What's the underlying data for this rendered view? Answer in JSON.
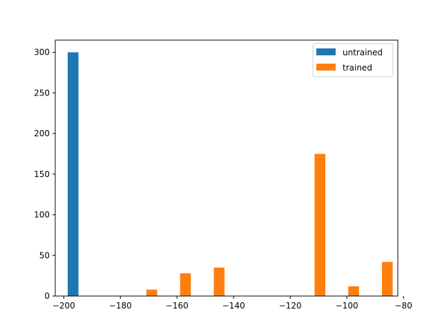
{
  "chart_data": {
    "type": "bar",
    "title": "",
    "xlabel": "",
    "ylabel": "",
    "xlim": [
      -203,
      -82
    ],
    "ylim": [
      0,
      315
    ],
    "bar_width": 3.8,
    "x_ticks": [
      -200,
      -180,
      -160,
      -140,
      -120,
      -100,
      -80
    ],
    "x_tick_labels": [
      "−200",
      "−180",
      "−160",
      "−140",
      "−120",
      "−100",
      "−80"
    ],
    "y_ticks": [
      0,
      50,
      100,
      150,
      200,
      250,
      300
    ],
    "y_tick_labels": [
      "0",
      "50",
      "100",
      "150",
      "200",
      "250",
      "300"
    ],
    "grid": false,
    "legend_position": "top-right",
    "series": [
      {
        "name": "untrained",
        "color": "#1f77b4",
        "points": [
          {
            "x": -196.7,
            "y": 300
          }
        ]
      },
      {
        "name": "trained",
        "color": "#ff7f0e",
        "points": [
          {
            "x": -168.9,
            "y": 8
          },
          {
            "x": -157.0,
            "y": 28
          },
          {
            "x": -145.1,
            "y": 35
          },
          {
            "x": -109.5,
            "y": 175
          },
          {
            "x": -97.6,
            "y": 12
          },
          {
            "x": -85.7,
            "y": 42
          }
        ]
      }
    ]
  }
}
